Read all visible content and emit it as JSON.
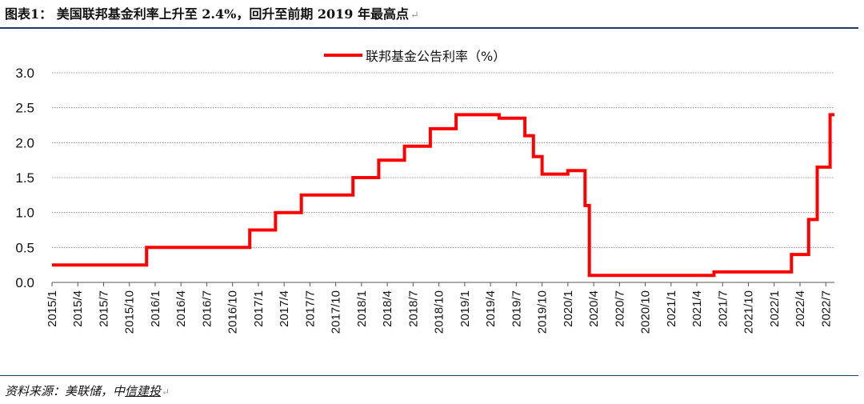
{
  "header": {
    "title": "图表1： 美国联邦基金利率上升至 2.4%，回升至前期 2019 年最高点",
    "return_mark": "↵"
  },
  "footer": {
    "source_prefix": "资料来源：美联储，中",
    "source_underlined": "信建投",
    "return_mark": "↵"
  },
  "chart_data": {
    "type": "line",
    "title": "",
    "xlabel": "",
    "ylabel": "",
    "ylim": [
      0,
      3.0
    ],
    "yticks": [
      "0.0",
      "0.5",
      "1.0",
      "1.5",
      "2.0",
      "2.5",
      "3.0"
    ],
    "grid": "horizontal dotted",
    "legend_position": "top-center",
    "x_tick_labels": [
      "2015/1",
      "2015/4",
      "2015/7",
      "2015/10",
      "2016/1",
      "2016/4",
      "2016/7",
      "2016/10",
      "2017/1",
      "2017/4",
      "2017/7",
      "2017/10",
      "2018/1",
      "2018/4",
      "2018/7",
      "2018/10",
      "2019/1",
      "2019/4",
      "2019/7",
      "2019/10",
      "2020/1",
      "2020/4",
      "2020/7",
      "2020/10",
      "2021/1",
      "2021/4",
      "2021/7",
      "2021/10",
      "2022/1",
      "2022/4",
      "2022/7"
    ],
    "series": [
      {
        "name": "联邦基金公告利率（%）",
        "color": "#ff0000",
        "step": true,
        "x": [
          "2015/1",
          "2015/12",
          "2016/12",
          "2017/3",
          "2017/6",
          "2017/12",
          "2018/3",
          "2018/6",
          "2018/9",
          "2018/12",
          "2019/7",
          "2019/9",
          "2019/10",
          "2020/3",
          "2020/3",
          "2020/3",
          "2022/3",
          "2022/5",
          "2022/6",
          "2022/7",
          "2022/8"
        ],
        "values": [
          0.25,
          0.5,
          0.75,
          1.0,
          1.25,
          1.5,
          1.75,
          2.0,
          2.25,
          2.5,
          2.25,
          2.0,
          1.75,
          1.25,
          1.0,
          0.25,
          0.5,
          1.0,
          1.75,
          2.5,
          2.5
        ],
        "display_values": [
          0.25,
          0.5,
          0.75,
          1.0,
          1.25,
          1.5,
          1.75,
          1.95,
          2.2,
          2.4,
          2.35,
          2.1,
          1.8,
          1.55,
          1.6,
          1.1,
          0.1,
          0.15,
          0.4,
          0.9,
          1.65,
          2.4
        ]
      }
    ],
    "steps": [
      {
        "from": "2015/1",
        "to": "2015/12",
        "value": 0.25
      },
      {
        "from": "2015/12",
        "to": "2016/12",
        "value": 0.5
      },
      {
        "from": "2016/12",
        "to": "2017/3",
        "value": 0.75
      },
      {
        "from": "2017/3",
        "to": "2017/6",
        "value": 1.0
      },
      {
        "from": "2017/6",
        "to": "2017/12",
        "value": 1.25
      },
      {
        "from": "2017/12",
        "to": "2018/3",
        "value": 1.5
      },
      {
        "from": "2018/3",
        "to": "2018/6",
        "value": 1.75
      },
      {
        "from": "2018/6",
        "to": "2018/9",
        "value": 1.95
      },
      {
        "from": "2018/9",
        "to": "2018/12",
        "value": 2.2
      },
      {
        "from": "2018/12",
        "to": "2019/5",
        "value": 2.4
      },
      {
        "from": "2019/5",
        "to": "2019/8",
        "value": 2.35
      },
      {
        "from": "2019/8",
        "to": "2019/9",
        "value": 2.1
      },
      {
        "from": "2019/9",
        "to": "2019/10",
        "value": 1.8
      },
      {
        "from": "2019/10",
        "to": "2020/1",
        "value": 1.55
      },
      {
        "from": "2020/1",
        "to": "2020/3",
        "value": 1.6
      },
      {
        "from": "2020/3",
        "to": "2020/3.5",
        "value": 1.1
      },
      {
        "from": "2020/3.5",
        "to": "2021/6",
        "value": 0.1
      },
      {
        "from": "2021/6",
        "to": "2022/3",
        "value": 0.15
      },
      {
        "from": "2022/3",
        "to": "2022/5",
        "value": 0.4
      },
      {
        "from": "2022/5",
        "to": "2022/6",
        "value": 0.9
      },
      {
        "from": "2022/6",
        "to": "2022/7.5",
        "value": 1.65
      },
      {
        "from": "2022/7.5",
        "to": "2022/8",
        "value": 2.4
      }
    ]
  }
}
